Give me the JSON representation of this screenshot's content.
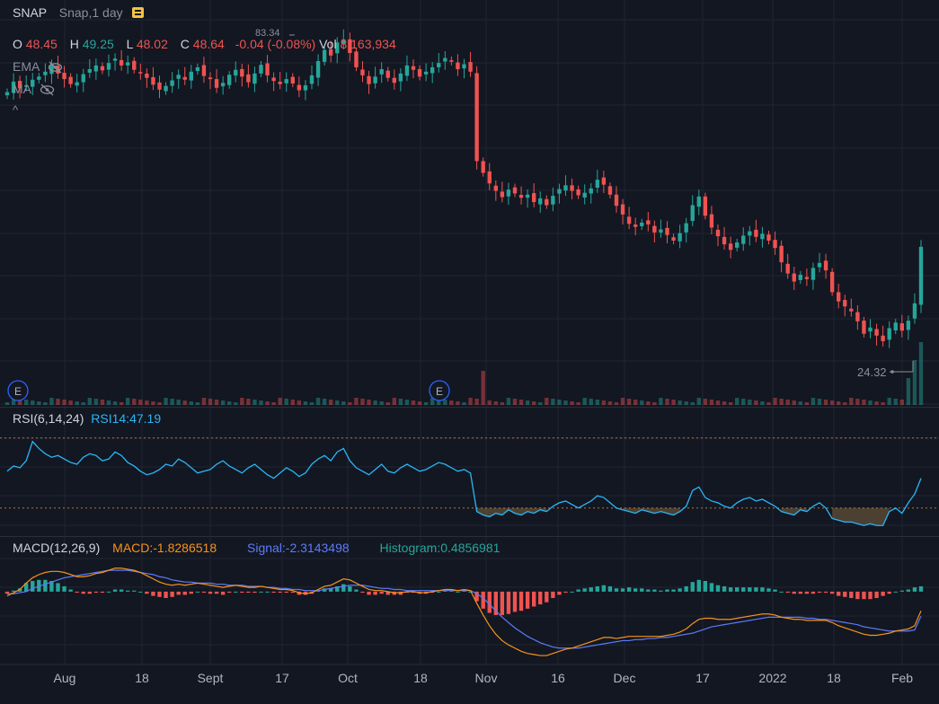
{
  "header": {
    "symbol": "SNAP",
    "interval": "Snap,1 day",
    "notes_icon": "notes-icon",
    "ohlc": {
      "o_label": "O",
      "o_value": "48.45",
      "h_label": "H",
      "h_value": "49.25",
      "l_label": "L",
      "l_value": "48.02",
      "c_label": "C",
      "c_value": "48.64",
      "change": "-0.04 (-0.08%)",
      "vol_label": "Vol",
      "vol_value": "8,163,934"
    },
    "indicators": [
      {
        "name": "EMA",
        "icon": "eye-hidden-icon"
      },
      {
        "name": "MA",
        "icon": "eye-hidden-icon"
      }
    ],
    "collapse_glyph": "^",
    "high_marker": "83.34",
    "low_marker": "24.32",
    "earnings_label": "E"
  },
  "rsi_pane": {
    "title": "RSI(6,14,24)",
    "value_label": "RSI14:47.19"
  },
  "macd_pane": {
    "title": "MACD(12,26,9)",
    "macd_label": "MACD:-1.8286518",
    "signal_label": "Signal:-2.3143498",
    "histogram_label": "Histogram:0.4856981"
  },
  "x_axis": {
    "ticks": [
      "Aug",
      "18",
      "Sept",
      "17",
      "Oct",
      "18",
      "Nov",
      "16",
      "Dec",
      "17",
      "2022",
      "18",
      "Feb"
    ]
  },
  "colors": {
    "background": "#131722",
    "up": "#26a69a",
    "down": "#ef5350",
    "rsi_line": "#29b6f6",
    "macd_line": "#f7931a",
    "signal_line": "#5b7cfa",
    "band": "#e8872b"
  },
  "chart_data": [
    {
      "type": "candlestick",
      "title": "SNAP",
      "x_ticks": [
        "Aug",
        "18",
        "Sept",
        "17",
        "Oct",
        "18",
        "Nov",
        "16",
        "Dec",
        "17",
        "2022",
        "18",
        "Feb"
      ],
      "close": [
        73.5,
        75.2,
        74.1,
        74.6,
        75.5,
        76.0,
        76.8,
        77.9,
        76.5,
        75.6,
        74.8,
        75.1,
        76.4,
        77.2,
        77.8,
        77.0,
        78.2,
        78.9,
        77.8,
        78.3,
        77.1,
        76.6,
        75.8,
        74.7,
        73.9,
        74.5,
        75.4,
        76.3,
        75.5,
        76.8,
        77.5,
        76.1,
        75.6,
        74.2,
        75.0,
        76.3,
        77.1,
        76.0,
        75.1,
        76.5,
        77.9,
        76.2,
        75.3,
        74.8,
        75.6,
        74.9,
        73.8,
        74.6,
        76.2,
        78.5,
        80.3,
        79.4,
        81.5,
        82.0,
        79.8,
        77.5,
        76.2,
        74.8,
        76.0,
        77.2,
        75.8,
        75.0,
        76.5,
        77.8,
        77.1,
        76.0,
        76.8,
        77.5,
        78.2,
        79.0,
        78.4,
        77.2,
        78.0,
        76.8,
        62.4,
        60.5,
        58.8,
        57.6,
        56.6,
        57.8,
        57.2,
        56.5,
        57.0,
        55.8,
        56.4,
        55.3,
        56.8,
        57.9,
        58.5,
        57.6,
        56.9,
        57.3,
        58.0,
        59.4,
        58.6,
        57.0,
        55.2,
        53.8,
        52.3,
        51.8,
        52.5,
        52.2,
        50.9,
        51.4,
        50.5,
        49.6,
        50.8,
        52.4,
        55.3,
        56.7,
        53.6,
        51.7,
        50.3,
        49.0,
        48.1,
        49.3,
        50.4,
        51.1,
        50.2,
        50.7,
        49.6,
        48.4,
        46.1,
        44.3,
        43.0,
        44.1,
        43.4,
        45.2,
        46.0,
        44.8,
        41.3,
        39.8,
        39.0,
        38.2,
        36.6,
        34.6,
        35.6,
        34.3,
        33.4,
        35.5,
        36.4,
        35.1,
        36.7,
        39.5,
        48.6
      ]
    },
    {
      "type": "line",
      "title": "RSI(6,14,24)",
      "series": [
        {
          "name": "RSI14",
          "values": [
            51,
            54,
            53,
            57,
            68,
            64,
            61,
            59,
            60,
            58,
            56,
            55,
            59,
            61,
            60,
            57,
            58,
            62,
            60,
            56,
            54,
            51,
            49,
            50,
            52,
            55,
            54,
            58,
            56,
            53,
            50,
            51,
            52,
            55,
            57,
            54,
            52,
            50,
            53,
            55,
            52,
            49,
            47,
            50,
            53,
            51,
            48,
            50,
            55,
            58,
            60,
            57,
            62,
            64,
            57,
            53,
            51,
            49,
            52,
            55,
            51,
            50,
            53,
            55,
            53,
            51,
            52,
            54,
            56,
            55,
            53,
            51,
            52,
            50,
            28,
            26,
            25,
            27,
            26,
            29,
            27,
            26,
            28,
            27,
            29,
            28,
            31,
            33,
            34,
            32,
            30,
            32,
            34,
            37,
            36,
            33,
            30,
            29,
            28,
            27,
            29,
            28,
            27,
            28,
            27,
            26,
            28,
            31,
            40,
            42,
            36,
            34,
            33,
            31,
            30,
            33,
            35,
            36,
            34,
            35,
            33,
            31,
            28,
            27,
            26,
            29,
            28,
            31,
            33,
            30,
            24,
            23,
            22,
            22,
            21,
            20,
            21,
            20,
            20,
            28,
            30,
            27,
            33,
            38,
            47
          ]
        }
      ],
      "bands": [
        30,
        70
      ]
    },
    {
      "type": "line",
      "title": "MACD(12,26,9)",
      "series": [
        {
          "name": "MACD",
          "values": [
            -0.4,
            -0.1,
            0.2,
            0.8,
            1.3,
            1.6,
            1.8,
            1.9,
            1.9,
            1.8,
            1.6,
            1.4,
            1.4,
            1.5,
            1.7,
            1.8,
            2.0,
            2.2,
            2.2,
            2.1,
            2.0,
            1.8,
            1.5,
            1.2,
            0.9,
            0.7,
            0.6,
            0.7,
            0.6,
            0.7,
            0.8,
            0.7,
            0.6,
            0.5,
            0.4,
            0.5,
            0.6,
            0.5,
            0.4,
            0.4,
            0.5,
            0.4,
            0.3,
            0.2,
            0.2,
            0.1,
            -0.1,
            -0.2,
            -0.1,
            0.2,
            0.5,
            0.6,
            0.9,
            1.2,
            1.1,
            0.8,
            0.5,
            0.2,
            0.1,
            0.1,
            0.0,
            -0.1,
            -0.1,
            0.0,
            0.0,
            -0.1,
            -0.1,
            0.0,
            0.1,
            0.2,
            0.2,
            0.1,
            0.2,
            0.1,
            -1.1,
            -2.2,
            -3.2,
            -4.0,
            -4.6,
            -5.0,
            -5.3,
            -5.6,
            -5.8,
            -5.9,
            -6.0,
            -6.0,
            -5.8,
            -5.6,
            -5.4,
            -5.3,
            -5.1,
            -4.9,
            -4.7,
            -4.5,
            -4.3,
            -4.3,
            -4.4,
            -4.3,
            -4.2,
            -4.2,
            -4.2,
            -4.2,
            -4.2,
            -4.2,
            -4.1,
            -4.0,
            -3.8,
            -3.5,
            -3.0,
            -2.6,
            -2.5,
            -2.5,
            -2.6,
            -2.6,
            -2.6,
            -2.5,
            -2.4,
            -2.3,
            -2.2,
            -2.1,
            -2.1,
            -2.2,
            -2.4,
            -2.5,
            -2.6,
            -2.6,
            -2.7,
            -2.7,
            -2.7,
            -2.7,
            -2.9,
            -3.2,
            -3.4,
            -3.6,
            -3.8,
            -4.0,
            -4.1,
            -4.1,
            -4.0,
            -3.9,
            -3.7,
            -3.6,
            -3.5,
            -3.2,
            -1.8
          ]
        },
        {
          "name": "Signal",
          "values": [
            -0.2,
            -0.2,
            -0.1,
            0.0,
            0.3,
            0.5,
            0.7,
            0.9,
            1.1,
            1.3,
            1.4,
            1.5,
            1.6,
            1.7,
            1.8,
            1.9,
            2.0,
            2.0,
            2.0,
            2.0,
            1.9,
            1.8,
            1.7,
            1.6,
            1.4,
            1.3,
            1.1,
            1.0,
            0.9,
            0.9,
            0.8,
            0.8,
            0.8,
            0.7,
            0.7,
            0.6,
            0.6,
            0.6,
            0.5,
            0.5,
            0.5,
            0.4,
            0.4,
            0.3,
            0.3,
            0.2,
            0.2,
            0.1,
            0.1,
            0.1,
            0.2,
            0.3,
            0.4,
            0.5,
            0.6,
            0.6,
            0.6,
            0.5,
            0.4,
            0.3,
            0.3,
            0.2,
            0.2,
            0.1,
            0.1,
            0.1,
            0.1,
            0.1,
            0.1,
            0.1,
            0.1,
            0.1,
            0.1,
            0.1,
            -0.2,
            -0.6,
            -1.2,
            -1.8,
            -2.4,
            -2.9,
            -3.4,
            -3.8,
            -4.2,
            -4.5,
            -4.8,
            -5.0,
            -5.2,
            -5.3,
            -5.3,
            -5.3,
            -5.3,
            -5.2,
            -5.1,
            -5.0,
            -4.9,
            -4.8,
            -4.7,
            -4.6,
            -4.6,
            -4.5,
            -4.5,
            -4.4,
            -4.4,
            -4.3,
            -4.3,
            -4.2,
            -4.1,
            -4.0,
            -3.9,
            -3.7,
            -3.5,
            -3.3,
            -3.2,
            -3.1,
            -3.0,
            -2.9,
            -2.8,
            -2.7,
            -2.6,
            -2.5,
            -2.4,
            -2.4,
            -2.4,
            -2.4,
            -2.4,
            -2.4,
            -2.5,
            -2.5,
            -2.6,
            -2.6,
            -2.7,
            -2.8,
            -2.9,
            -3.0,
            -3.1,
            -3.3,
            -3.4,
            -3.5,
            -3.6,
            -3.7,
            -3.7,
            -3.7,
            -3.7,
            -3.6,
            -2.3
          ]
        }
      ],
      "histogram": "MACD minus Signal"
    }
  ]
}
